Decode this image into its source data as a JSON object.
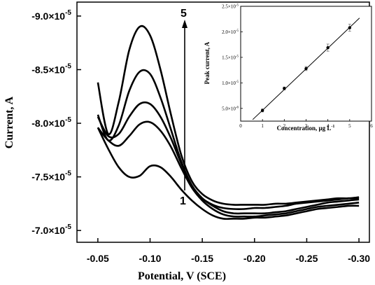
{
  "chart_data": [
    {
      "type": "line",
      "xlabel": "Potential, V (SCE)",
      "ylabel": "Current, A",
      "x_reversed": true,
      "xlim": [
        -0.03,
        -0.31
      ],
      "ylim": [
        -6.89e-05,
        -9.13e-05
      ],
      "x_ticks": [
        {
          "value": -0.05,
          "label": "-0.05"
        },
        {
          "value": -0.1,
          "label": "-0.10"
        },
        {
          "value": -0.15,
          "label": "-0.15"
        },
        {
          "value": -0.2,
          "label": "-0.20"
        },
        {
          "value": -0.25,
          "label": "-0.25"
        },
        {
          "value": -0.3,
          "label": "-0.30"
        }
      ],
      "y_ticks": [
        {
          "value": -7e-05,
          "label": "-7.0×10",
          "exp": "-5"
        },
        {
          "value": -7.5e-05,
          "label": "-7.5×10",
          "exp": "-5"
        },
        {
          "value": -8e-05,
          "label": "-8.0×10",
          "exp": "-5"
        },
        {
          "value": -8.5e-05,
          "label": "-8.5×10",
          "exp": "-5"
        },
        {
          "value": -9e-05,
          "label": "-9.0×10",
          "exp": "-5"
        }
      ],
      "annotations": {
        "bottom_label": "1",
        "top_label": "5",
        "arrow_x": -0.135
      },
      "series": [
        {
          "x": [
            -0.05,
            -0.06,
            -0.07,
            -0.08,
            -0.09,
            -0.1,
            -0.11,
            -0.12,
            -0.13,
            -0.14,
            -0.15,
            -0.16,
            -0.17,
            -0.18,
            -0.19,
            -0.2,
            -0.21,
            -0.22,
            -0.23,
            -0.24,
            -0.25,
            -0.26,
            -0.27,
            -0.28,
            -0.29,
            -0.3
          ],
          "y": [
            -7.96e-05,
            -7.76e-05,
            -7.59e-05,
            -7.5e-05,
            -7.51e-05,
            -7.6e-05,
            -7.59e-05,
            -7.5e-05,
            -7.38e-05,
            -7.28e-05,
            -7.2e-05,
            -7.14e-05,
            -7.11e-05,
            -7.11e-05,
            -7.11e-05,
            -7.12e-05,
            -7.12e-05,
            -7.13e-05,
            -7.14e-05,
            -7.16e-05,
            -7.18e-05,
            -7.2e-05,
            -7.21e-05,
            -7.22e-05,
            -7.23e-05,
            -7.23e-05
          ]
        },
        {
          "x": [
            -0.05,
            -0.06,
            -0.07,
            -0.08,
            -0.09,
            -0.1,
            -0.11,
            -0.12,
            -0.13,
            -0.14,
            -0.15,
            -0.16,
            -0.17,
            -0.18,
            -0.19,
            -0.2,
            -0.21,
            -0.22,
            -0.23,
            -0.24,
            -0.25,
            -0.26,
            -0.27,
            -0.28,
            -0.29,
            -0.3
          ],
          "y": [
            -7.96e-05,
            -7.84e-05,
            -7.79e-05,
            -7.88e-05,
            -7.99e-05,
            -8.01e-05,
            -7.93e-05,
            -7.78e-05,
            -7.58e-05,
            -7.4e-05,
            -7.28e-05,
            -7.2e-05,
            -7.15e-05,
            -7.13e-05,
            -7.13e-05,
            -7.13e-05,
            -7.14e-05,
            -7.15e-05,
            -7.16e-05,
            -7.18e-05,
            -7.2e-05,
            -7.22e-05,
            -7.23e-05,
            -7.24e-05,
            -7.25e-05,
            -7.26e-05
          ]
        },
        {
          "x": [
            -0.05,
            -0.06,
            -0.07,
            -0.08,
            -0.09,
            -0.1,
            -0.11,
            -0.12,
            -0.13,
            -0.14,
            -0.15,
            -0.16,
            -0.17,
            -0.18,
            -0.19,
            -0.2,
            -0.21,
            -0.22,
            -0.23,
            -0.24,
            -0.25,
            -0.26,
            -0.27,
            -0.28,
            -0.29,
            -0.3
          ],
          "y": [
            -8.06e-05,
            -7.88e-05,
            -7.9e-05,
            -8.06e-05,
            -8.18e-05,
            -8.18e-05,
            -8.06e-05,
            -7.86e-05,
            -7.62e-05,
            -7.42e-05,
            -7.3e-05,
            -7.23e-05,
            -7.18e-05,
            -7.16e-05,
            -7.16e-05,
            -7.16e-05,
            -7.16e-05,
            -7.17e-05,
            -7.18e-05,
            -7.2e-05,
            -7.22e-05,
            -7.24e-05,
            -7.26e-05,
            -7.27e-05,
            -7.28e-05,
            -7.29e-05
          ]
        },
        {
          "x": [
            -0.05,
            -0.06,
            -0.07,
            -0.08,
            -0.09,
            -0.1,
            -0.11,
            -0.12,
            -0.13,
            -0.14,
            -0.15,
            -0.16,
            -0.17,
            -0.18,
            -0.19,
            -0.2,
            -0.21,
            -0.22,
            -0.23,
            -0.24,
            -0.25,
            -0.26,
            -0.27,
            -0.28,
            -0.29,
            -0.3
          ],
          "y": [
            -8.08e-05,
            -7.84e-05,
            -7.98e-05,
            -8.3e-05,
            -8.48e-05,
            -8.46e-05,
            -8.24e-05,
            -7.94e-05,
            -7.64e-05,
            -7.42e-05,
            -7.3e-05,
            -7.24e-05,
            -7.21e-05,
            -7.2e-05,
            -7.2e-05,
            -7.21e-05,
            -7.21e-05,
            -7.22e-05,
            -7.23e-05,
            -7.25e-05,
            -7.26e-05,
            -7.27e-05,
            -7.28e-05,
            -7.29e-05,
            -7.3e-05,
            -7.3e-05
          ]
        },
        {
          "x": [
            -0.05,
            -0.06,
            -0.07,
            -0.08,
            -0.09,
            -0.1,
            -0.11,
            -0.12,
            -0.13,
            -0.14,
            -0.15,
            -0.16,
            -0.17,
            -0.18,
            -0.19,
            -0.2,
            -0.21,
            -0.22,
            -0.23,
            -0.24,
            -0.25,
            -0.26,
            -0.27,
            -0.28,
            -0.29,
            -0.3
          ],
          "y": [
            -8.38e-05,
            -7.9e-05,
            -8.2e-05,
            -8.68e-05,
            -8.9e-05,
            -8.82e-05,
            -8.5e-05,
            -8.08e-05,
            -7.7e-05,
            -7.46e-05,
            -7.34e-05,
            -7.28e-05,
            -7.25e-05,
            -7.24e-05,
            -7.24e-05,
            -7.24e-05,
            -7.24e-05,
            -7.25e-05,
            -7.25e-05,
            -7.26e-05,
            -7.27e-05,
            -7.28e-05,
            -7.29e-05,
            -7.3e-05,
            -7.3e-05,
            -7.31e-05
          ]
        }
      ]
    },
    {
      "type": "scatter",
      "xlabel": "Concentration, μg L",
      "xlabel_exp": "-1",
      "ylabel": "Peak current, A",
      "xlim": [
        0,
        6
      ],
      "ylim": [
        2.5e-06,
        2.5e-05
      ],
      "x_ticks": [
        "0",
        "1",
        "2",
        "3",
        "4",
        "5",
        "6"
      ],
      "y_ticks": [
        {
          "value": 5e-06,
          "label": "5.0×10",
          "exp": "-6"
        },
        {
          "value": 1e-05,
          "label": "1.0×10",
          "exp": "-5"
        },
        {
          "value": 1.5e-05,
          "label": "1.5×10",
          "exp": "-5"
        },
        {
          "value": 2e-05,
          "label": "2.0×10",
          "exp": "-5"
        },
        {
          "value": 2.5e-05,
          "label": "2.5×10",
          "exp": "-5"
        }
      ],
      "points": {
        "x": [
          1,
          2,
          3,
          4,
          5
        ],
        "y": [
          4.6e-06,
          8.9e-06,
          1.28e-05,
          1.69e-05,
          2.08e-05
        ],
        "err": [
          3e-07,
          3e-07,
          4e-07,
          7e-07,
          7e-07
        ]
      },
      "fit": {
        "x": [
          0.55,
          5.45
        ],
        "y": [
          2.8e-06,
          2.27e-05
        ]
      }
    }
  ]
}
